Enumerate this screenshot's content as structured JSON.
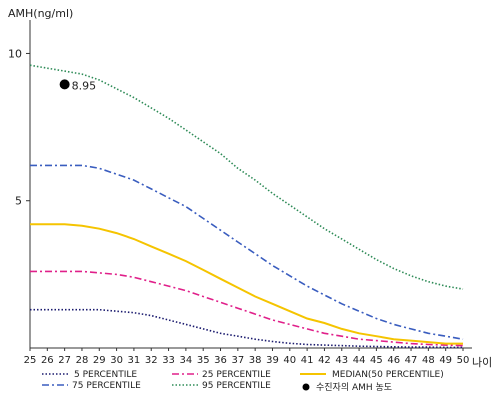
{
  "chart_data": {
    "type": "line",
    "ylabel": "AMH(ng/ml)",
    "xlabel": "나이",
    "ylim": [
      0,
      11
    ],
    "y_ticks": [
      5,
      10
    ],
    "x": [
      25,
      26,
      27,
      28,
      29,
      30,
      31,
      32,
      33,
      34,
      35,
      36,
      37,
      38,
      39,
      40,
      41,
      42,
      43,
      44,
      45,
      46,
      47,
      48,
      49,
      50
    ],
    "grid": false,
    "legend_position": "bottom",
    "series": [
      {
        "name": "5 PERCENTILE",
        "color": "#1a1a6e",
        "dash": "dotted",
        "values": [
          1.3,
          1.3,
          1.3,
          1.3,
          1.3,
          1.25,
          1.2,
          1.1,
          0.95,
          0.8,
          0.65,
          0.5,
          0.4,
          0.3,
          0.22,
          0.16,
          0.12,
          0.1,
          0.08,
          0.06,
          0.05,
          0.04,
          0.03,
          0.03,
          0.02,
          0.02
        ]
      },
      {
        "name": "75 PERCENTILE",
        "color": "#3a5dbf",
        "dash": "dashdot",
        "values": [
          6.2,
          6.2,
          6.2,
          6.2,
          6.1,
          5.9,
          5.7,
          5.4,
          5.1,
          4.8,
          4.4,
          4.0,
          3.6,
          3.2,
          2.8,
          2.45,
          2.1,
          1.8,
          1.5,
          1.25,
          1.0,
          0.8,
          0.65,
          0.5,
          0.4,
          0.3
        ]
      },
      {
        "name": "25 PERCENTILE",
        "color": "#e0208a",
        "dash": "dashdot",
        "values": [
          2.6,
          2.6,
          2.6,
          2.6,
          2.55,
          2.5,
          2.4,
          2.25,
          2.1,
          1.95,
          1.75,
          1.55,
          1.35,
          1.15,
          0.95,
          0.8,
          0.65,
          0.5,
          0.4,
          0.3,
          0.25,
          0.2,
          0.15,
          0.12,
          0.1,
          0.08
        ]
      },
      {
        "name": "95 PERCENTILE",
        "color": "#2e8b57",
        "dash": "dotted",
        "values": [
          9.6,
          9.5,
          9.4,
          9.3,
          9.1,
          8.8,
          8.5,
          8.15,
          7.8,
          7.4,
          7.0,
          6.6,
          6.1,
          5.7,
          5.25,
          4.85,
          4.45,
          4.05,
          3.7,
          3.35,
          3.0,
          2.7,
          2.45,
          2.25,
          2.1,
          2.0
        ]
      },
      {
        "name": "MEDIAN(50 PERCENTILE)",
        "color": "#f5c400",
        "dash": "solid",
        "values": [
          4.2,
          4.2,
          4.2,
          4.15,
          4.05,
          3.9,
          3.7,
          3.45,
          3.2,
          2.95,
          2.65,
          2.35,
          2.05,
          1.75,
          1.5,
          1.25,
          1.0,
          0.85,
          0.65,
          0.5,
          0.4,
          0.3,
          0.25,
          0.2,
          0.15,
          0.15
        ]
      }
    ],
    "patient_point": {
      "label": "수진자의 AMH 농도",
      "x": 27,
      "y": 8.95,
      "value_label": "8.95"
    }
  }
}
